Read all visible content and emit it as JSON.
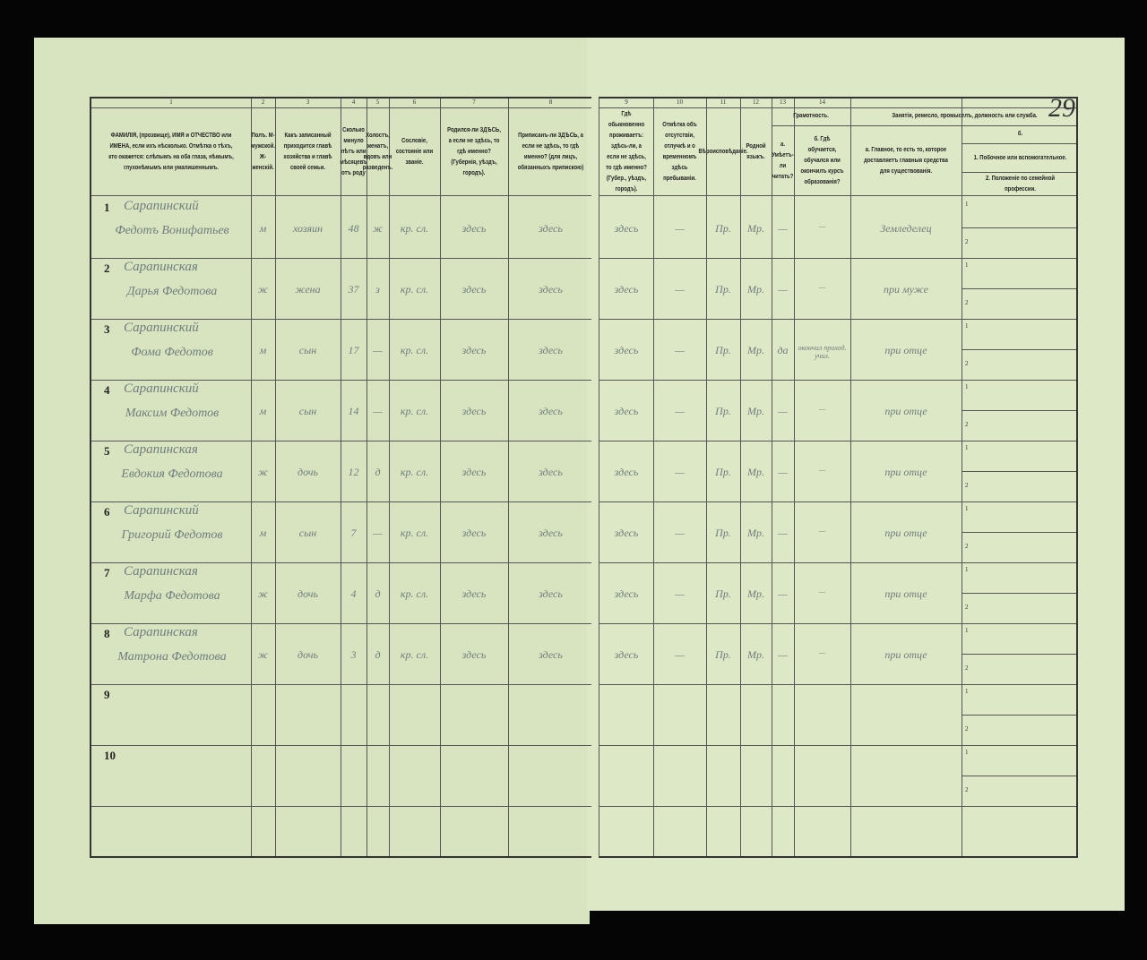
{
  "page_number": "29",
  "left_headers": [
    {
      "num": "1",
      "text": "ФАМИЛІЯ, (прозвище), ИМЯ и ОТЧЕСТВО или ИМЕНА, если ихъ нѣсколько. Отмѣтка о тѣхъ, кто окажется: слѣпымъ на оба глаза, нѣмымъ, глухонѣмымъ или умалишеннымъ."
    },
    {
      "num": "2",
      "text": "Полъ. М-мужской. Ж-женскій."
    },
    {
      "num": "3",
      "text": "Какъ записанный приходится главѣ хозяйства и главѣ своей семьи."
    },
    {
      "num": "4",
      "text": "Сколько минуло лѣтъ или мѣсяцевъ отъ роду"
    },
    {
      "num": "5",
      "text": "Холостъ, женатъ, вдовъ или разведенъ."
    },
    {
      "num": "6",
      "text": "Сословіе, состояніе или званіе."
    },
    {
      "num": "7",
      "text": "Родился-ли ЗДѢСЬ, а если не здѣсь, то гдѣ именно? (Губернія, уѣздъ, городъ)."
    },
    {
      "num": "8",
      "text": "Приписанъ-ли ЗДѢСЬ, а если не здѣсь, то гдѣ именно? (для лицъ, обязанныхъ припискою)"
    }
  ],
  "right_headers": [
    {
      "num": "9",
      "text": "Гдѣ обыкновенно проживаетъ: здѣсь-ли, а если не здѣсь, то гдѣ именно? (Губер., уѣздъ, городъ)."
    },
    {
      "num": "10",
      "text": "Отмѣтка объ отсутствіи, отлучкѣ и о временномъ здѣсь пребываніи."
    },
    {
      "num": "11",
      "text": "Вѣроисповѣданіе."
    },
    {
      "num": "12",
      "text": "Родной языкъ."
    },
    {
      "num": "13",
      "text": "Грамотность.",
      "a": "а. Умѣетъ-ли читать?",
      "b": "б. Гдѣ обучается, обучался или окончилъ курсъ образованія?"
    },
    {
      "num": "14",
      "text": "Занятія, ремесло, промыселъ, должность или служба.",
      "a": "а. Главное, то есть то, которое доставляетъ главныя средства для существованія.",
      "b": "б.",
      "b1": "1. Побочное или вспомогательное.",
      "b2": "2. Положеніе по семейной профессии."
    }
  ],
  "rows": [
    {
      "n": "1",
      "surname": "Сарапинский",
      "name": "Федотъ Вонифатьев",
      "sex": "м",
      "rel": "хозяин",
      "age": "48",
      "mar": "ж",
      "est": "кр. сл.",
      "born": "здесь",
      "reg": "здесь",
      "live": "здесь",
      "abs": "—",
      "rel2": "Пр.",
      "lang": "Мр.",
      "lit": "—",
      "edu": "—",
      "occ": "Земледелец"
    },
    {
      "n": "2",
      "surname": "Сарапинская",
      "name": "Дарья Федотова",
      "sex": "ж",
      "rel": "жена",
      "age": "37",
      "mar": "з",
      "est": "кр. сл.",
      "born": "здесь",
      "reg": "здесь",
      "live": "здесь",
      "abs": "—",
      "rel2": "Пр.",
      "lang": "Мр.",
      "lit": "—",
      "edu": "—",
      "occ": "при муже"
    },
    {
      "n": "3",
      "surname": "Сарапинский",
      "name": "Фома Федотов",
      "sex": "м",
      "rel": "сын",
      "age": "17",
      "mar": "—",
      "est": "кр. сл.",
      "born": "здесь",
      "reg": "здесь",
      "live": "здесь",
      "abs": "—",
      "rel2": "Пр.",
      "lang": "Мр.",
      "lit": "да",
      "edu": "окончил приход. учил.",
      "occ": "при отце"
    },
    {
      "n": "4",
      "surname": "Сарапинский",
      "name": "Максим Федотов",
      "sex": "м",
      "rel": "сын",
      "age": "14",
      "mar": "—",
      "est": "кр. сл.",
      "born": "здесь",
      "reg": "здесь",
      "live": "здесь",
      "abs": "—",
      "rel2": "Пр.",
      "lang": "Мр.",
      "lit": "—",
      "edu": "—",
      "occ": "при отце"
    },
    {
      "n": "5",
      "surname": "Сарапинская",
      "name": "Евдокия Федотова",
      "sex": "ж",
      "rel": "дочь",
      "age": "12",
      "mar": "д",
      "est": "кр. сл.",
      "born": "здесь",
      "reg": "здесь",
      "live": "здесь",
      "abs": "—",
      "rel2": "Пр.",
      "lang": "Мр.",
      "lit": "—",
      "edu": "—",
      "occ": "при отце"
    },
    {
      "n": "6",
      "surname": "Сарапинский",
      "name": "Григорий Федотов",
      "sex": "м",
      "rel": "сын",
      "age": "7",
      "mar": "—",
      "est": "кр. сл.",
      "born": "здесь",
      "reg": "здесь",
      "live": "здесь",
      "abs": "—",
      "rel2": "Пр.",
      "lang": "Мр.",
      "lit": "—",
      "edu": "—",
      "occ": "при отце"
    },
    {
      "n": "7",
      "surname": "Сарапинская",
      "name": "Марфа Федотова",
      "sex": "ж",
      "rel": "дочь",
      "age": "4",
      "mar": "д",
      "est": "кр. сл.",
      "born": "здесь",
      "reg": "здесь",
      "live": "здесь",
      "abs": "—",
      "rel2": "Пр.",
      "lang": "Мр.",
      "lit": "—",
      "edu": "—",
      "occ": "при отце"
    },
    {
      "n": "8",
      "surname": "Сарапинская",
      "name": "Матрона Федотова",
      "sex": "ж",
      "rel": "дочь",
      "age": "3",
      "mar": "д",
      "est": "кр. сл.",
      "born": "здесь",
      "reg": "здесь",
      "live": "здесь",
      "abs": "—",
      "rel2": "Пр.",
      "lang": "Мр.",
      "lit": "—",
      "edu": "—",
      "occ": "при отце"
    },
    {
      "n": "9"
    },
    {
      "n": "10"
    }
  ],
  "sub_labels": [
    "1",
    "2"
  ]
}
